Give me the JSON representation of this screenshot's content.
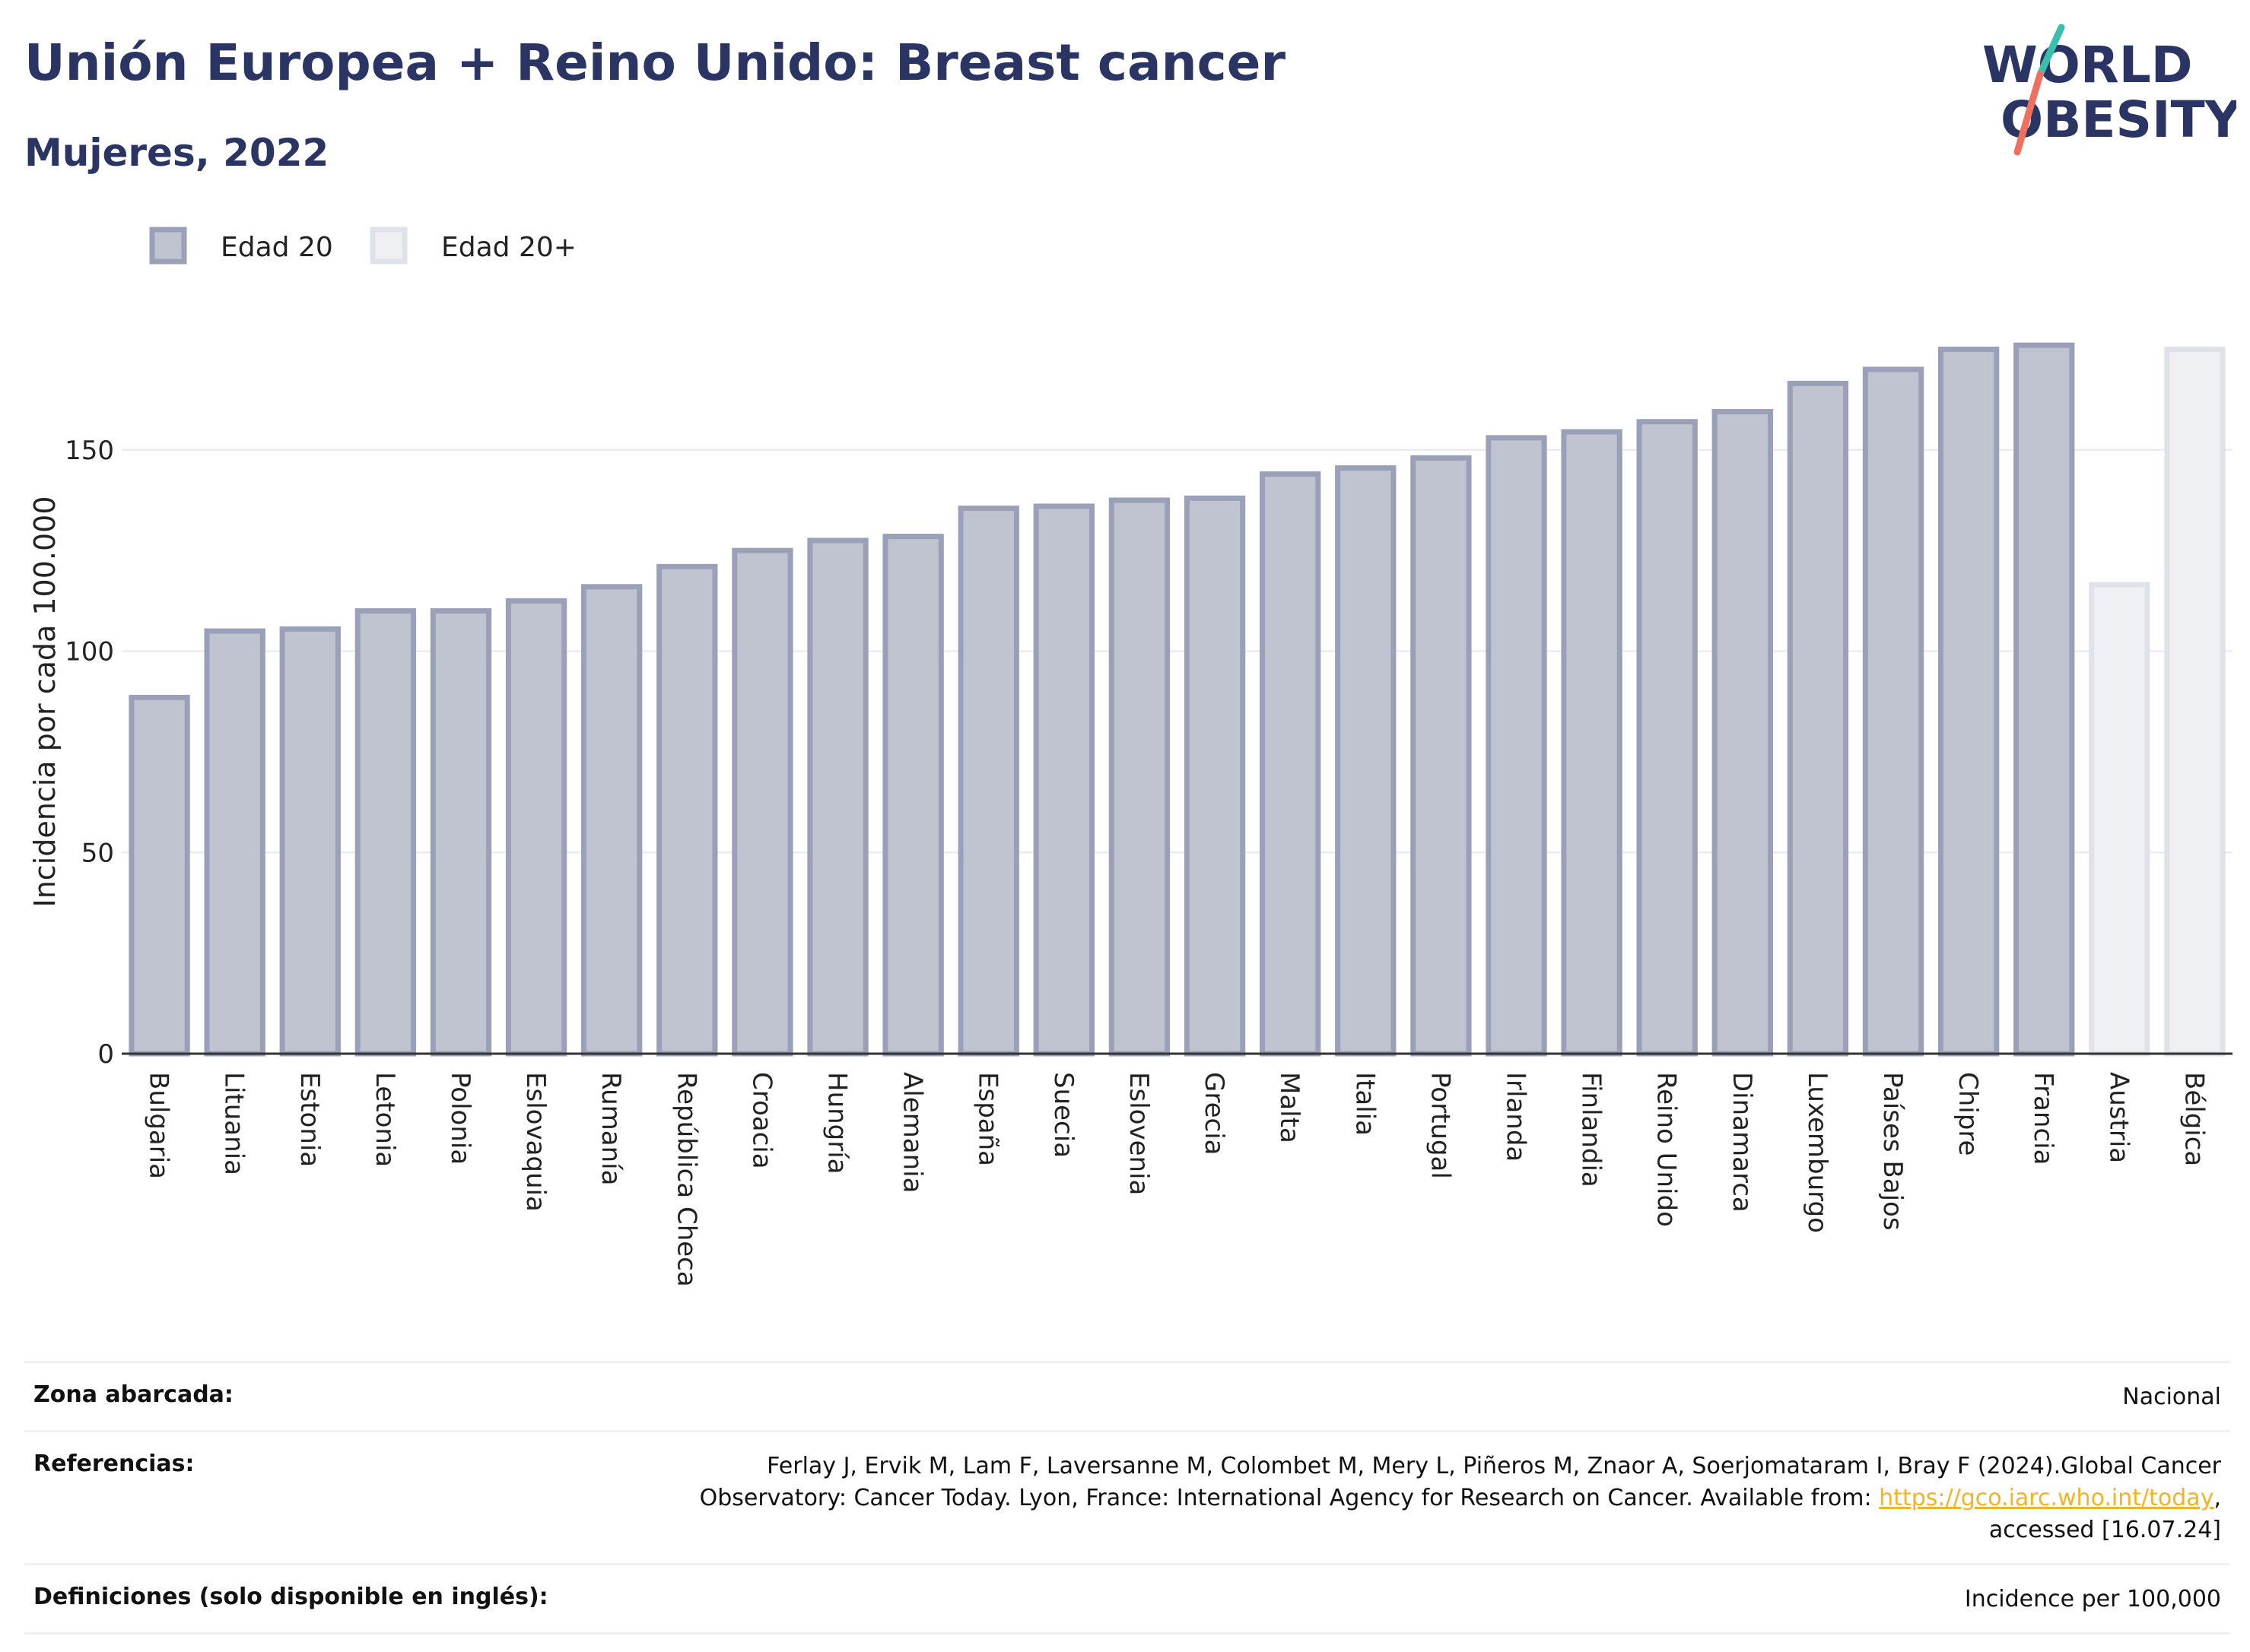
{
  "header": {
    "title": "Unión Europea + Reino Unido: Breast cancer",
    "subtitle": "Mujeres, 2022",
    "logo_line1": "WORLD",
    "logo_line2": "OBESITY"
  },
  "colors": {
    "primary_bar": "#c0c3d0",
    "primary_bar_border": "#9aa0b8",
    "secondary_bar": "#eef0f4",
    "secondary_bar_border": "#dfe2ea",
    "title": "#2b3563",
    "logo_teal": "#3bbfad",
    "logo_coral": "#f07060",
    "link": "#f0b429"
  },
  "chart_data": {
    "type": "bar",
    "ylabel": "Incidencia por cada 100.000",
    "xlabel": "",
    "ylim": [
      0,
      190
    ],
    "yticks": [
      0,
      50,
      100,
      150
    ],
    "grid": true,
    "legend": {
      "placement": "top-left",
      "items": [
        {
          "label": "Edad 20",
          "series": "edad20"
        },
        {
          "label": "Edad 20+",
          "series": "edad20plus"
        }
      ]
    },
    "categories": [
      "Bulgaria",
      "Lituania",
      "Estonia",
      "Letonia",
      "Polonia",
      "Eslovaquia",
      "Rumanía",
      "República Checa",
      "Croacia",
      "Hungría",
      "Alemania",
      "España",
      "Suecia",
      "Eslovenia",
      "Grecia",
      "Malta",
      "Italia",
      "Portugal",
      "Irlanda",
      "Finlandia",
      "Reino Unido",
      "Dinamarca",
      "Luxemburgo",
      "Países Bajos",
      "Chipre",
      "Francia",
      "Austria",
      "Bélgica"
    ],
    "series": [
      {
        "name": "Edad 20",
        "key": "edad20",
        "values": [
          88.5,
          105,
          105.5,
          110,
          110,
          112.5,
          116,
          121,
          125,
          127.5,
          128.5,
          135.5,
          136,
          137.5,
          138,
          144,
          145.5,
          148,
          153,
          154.5,
          157,
          159.5,
          166.5,
          170,
          175,
          176,
          null,
          null
        ]
      },
      {
        "name": "Edad 20+",
        "key": "edad20plus",
        "values": [
          null,
          null,
          null,
          null,
          null,
          null,
          null,
          null,
          null,
          null,
          null,
          null,
          null,
          null,
          null,
          null,
          null,
          null,
          null,
          null,
          null,
          null,
          null,
          null,
          null,
          null,
          116.5,
          175
        ]
      }
    ]
  },
  "info": {
    "zona_label": "Zona abarcada:",
    "zona_value": "Nacional",
    "ref_label": "Referencias:",
    "ref_text_1": "Ferlay J, Ervik M, Lam F, Laversanne M, Colombet M, Mery L, Piñeros M, Znaor A, Soerjomataram I, Bray F (2024).Global Cancer Observatory: Cancer Today. Lyon, France: International Agency for Research on Cancer. Available from: ",
    "ref_link": "https://gco.iarc.who.int/today",
    "ref_text_2": ", accessed [16.07.24]",
    "def_label": "Definiciones (solo disponible en inglés):",
    "def_value": "Incidence per 100,000"
  }
}
